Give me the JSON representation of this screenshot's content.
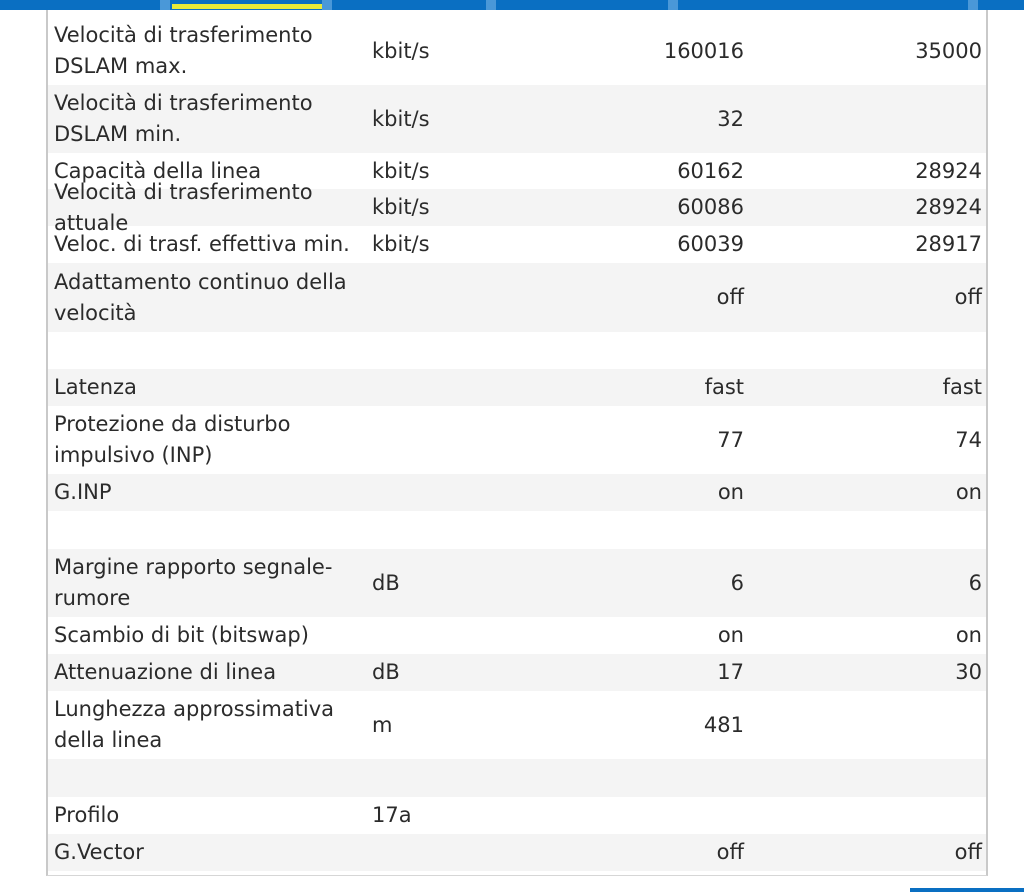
{
  "rows": [
    {
      "name": "Velocità di trasferimento DSLAM max.",
      "unit": "kbit/s",
      "downstream": "160016",
      "upstream": "35000"
    },
    {
      "name": "Velocità di trasferimento DSLAM min.",
      "unit": "kbit/s",
      "downstream": "32",
      "upstream": ""
    },
    {
      "name": "Capacità della linea",
      "unit": "kbit/s",
      "downstream": "60162",
      "upstream": "28924"
    },
    {
      "name": "Velocità di trasferimento attuale",
      "unit": "kbit/s",
      "downstream": "60086",
      "upstream": "28924"
    },
    {
      "name": "Veloc. di trasf. effettiva min.",
      "unit": "kbit/s",
      "downstream": "60039",
      "upstream": "28917"
    },
    {
      "name": "Adattamento continuo della velocità",
      "unit": "",
      "downstream": "off",
      "upstream": "off"
    },
    {
      "name": "",
      "unit": "",
      "downstream": "",
      "upstream": ""
    },
    {
      "name": "Latenza",
      "unit": "",
      "downstream": "fast",
      "upstream": "fast"
    },
    {
      "name": "Protezione da disturbo impulsivo (INP)",
      "unit": "",
      "downstream": "77",
      "upstream": "74"
    },
    {
      "name": "G.INP",
      "unit": "",
      "downstream": "on",
      "upstream": "on"
    },
    {
      "name": "",
      "unit": "",
      "downstream": "",
      "upstream": ""
    },
    {
      "name": "Margine rapporto segnale-rumore",
      "unit": "dB",
      "downstream": "6",
      "upstream": "6"
    },
    {
      "name": "Scambio di bit (bitswap)",
      "unit": "",
      "downstream": "on",
      "upstream": "on"
    },
    {
      "name": "Attenuazione di linea",
      "unit": "dB",
      "downstream": "17",
      "upstream": "30"
    },
    {
      "name": "Lunghezza approssimativa della linea",
      "unit": "m",
      "downstream": "481",
      "upstream": ""
    },
    {
      "name": "",
      "unit": "",
      "downstream": "",
      "upstream": ""
    },
    {
      "name": "Profilo",
      "unit": "17a",
      "downstream": "",
      "upstream": ""
    },
    {
      "name": "G.Vector",
      "unit": "",
      "downstream": "off",
      "upstream": "off"
    }
  ]
}
